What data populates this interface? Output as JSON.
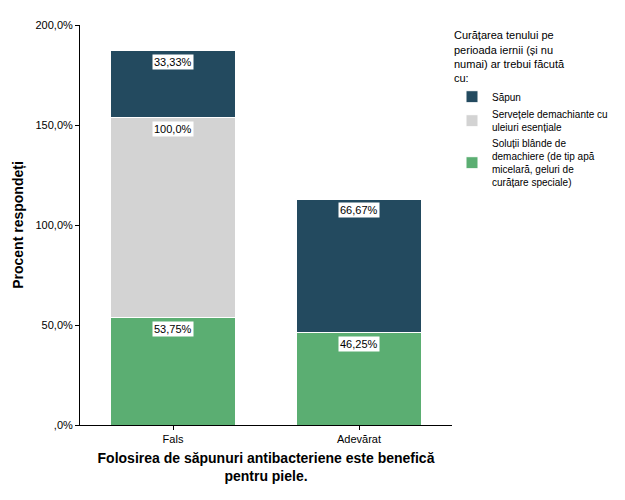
{
  "chart_data": {
    "type": "bar",
    "stacked": true,
    "x_label": "Folosirea de săpunuri antibacteriene este benefică pentru piele.",
    "y_label": "Procent respondeți",
    "legend_title": "Curățarea tenului pe perioada iernii (și nu numai) ar trebui făcută cu:",
    "categories": [
      "Fals",
      "Adevărat"
    ],
    "series": [
      {
        "name": "Soluții blânde de demachiere (de tip apă micelară, geluri de curățare speciale)",
        "color": "#5bae72",
        "values": [
          53.75,
          46.25
        ],
        "value_labels": [
          "53,75%",
          "46,25%"
        ]
      },
      {
        "name": "Servețele demachiante cu uleiuri esențiale",
        "color": "#d3d3d3",
        "values": [
          100,
          null
        ],
        "value_labels": [
          "100,0%",
          null
        ]
      },
      {
        "name": "Săpun",
        "color": "#234a5f",
        "values": [
          33.33,
          66.67
        ],
        "value_labels": [
          "33,33%",
          "66,67%"
        ]
      }
    ],
    "ylim": [
      0,
      200
    ],
    "yticks": [
      {
        "value": 0,
        "label": ",0%"
      },
      {
        "value": 50,
        "label": "50,0%"
      },
      {
        "value": 100,
        "label": "100,0%"
      },
      {
        "value": 150,
        "label": "150,0%"
      },
      {
        "value": 200,
        "label": "200,0%"
      }
    ],
    "grid": false,
    "legend": "right",
    "data_labels": true
  }
}
